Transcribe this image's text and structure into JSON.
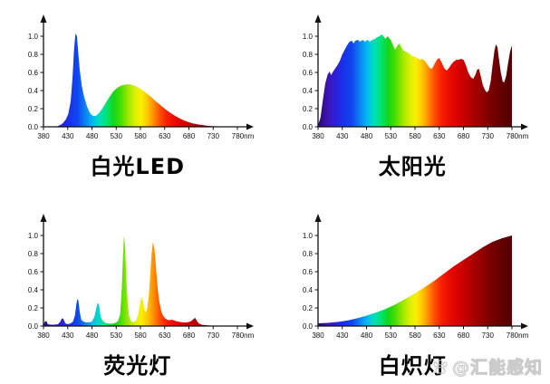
{
  "watermark": {
    "icon": "paw-icon",
    "handle": "@汇能感知"
  },
  "spectrum_gradient": [
    {
      "wl": 380,
      "color": "#2b0a6e"
    },
    {
      "wl": 400,
      "color": "#3d14b4"
    },
    {
      "wl": 415,
      "color": "#2f1fd8"
    },
    {
      "wl": 430,
      "color": "#1b2fe8"
    },
    {
      "wl": 450,
      "color": "#0e46f0"
    },
    {
      "wl": 465,
      "color": "#0f7cf2"
    },
    {
      "wl": 480,
      "color": "#00b7f2"
    },
    {
      "wl": 495,
      "color": "#00ddc0"
    },
    {
      "wl": 510,
      "color": "#00e470"
    },
    {
      "wl": 525,
      "color": "#14d61c"
    },
    {
      "wl": 540,
      "color": "#4cde00"
    },
    {
      "wl": 555,
      "color": "#9fe800"
    },
    {
      "wl": 570,
      "color": "#ddf000"
    },
    {
      "wl": 582,
      "color": "#fbef00"
    },
    {
      "wl": 595,
      "color": "#ffc400"
    },
    {
      "wl": 608,
      "color": "#ff8a00"
    },
    {
      "wl": 620,
      "color": "#ff4e00"
    },
    {
      "wl": 635,
      "color": "#f81e00"
    },
    {
      "wl": 655,
      "color": "#e60600"
    },
    {
      "wl": 680,
      "color": "#cb0000"
    },
    {
      "wl": 705,
      "color": "#a50000"
    },
    {
      "wl": 730,
      "color": "#800000"
    },
    {
      "wl": 755,
      "color": "#650000"
    },
    {
      "wl": 780,
      "color": "#520000"
    }
  ],
  "chart_data": [
    {
      "id": "white-led",
      "type": "area",
      "title": "白光LED",
      "xlabel": "",
      "ylabel": "",
      "x_unit": "nm",
      "xlim": [
        380,
        780
      ],
      "ylim": [
        0,
        1.05
      ],
      "x_tick_labels": [
        "380",
        "430",
        "480",
        "530",
        "580",
        "630",
        "680",
        "730",
        "780nm"
      ],
      "y_tick_labels": [
        "0.0",
        "0.2",
        "0.4",
        "0.6",
        "0.8",
        "1.0"
      ],
      "points": [
        [
          380,
          0
        ],
        [
          408,
          0.005
        ],
        [
          415,
          0.02
        ],
        [
          420,
          0.04
        ],
        [
          426,
          0.08
        ],
        [
          431,
          0.14
        ],
        [
          436,
          0.28
        ],
        [
          440,
          0.55
        ],
        [
          443,
          0.85
        ],
        [
          446,
          1.03
        ],
        [
          449,
          1.0
        ],
        [
          452,
          0.8
        ],
        [
          455,
          0.62
        ],
        [
          459,
          0.45
        ],
        [
          464,
          0.33
        ],
        [
          470,
          0.22
        ],
        [
          476,
          0.15
        ],
        [
          482,
          0.12
        ],
        [
          488,
          0.12
        ],
        [
          494,
          0.15
        ],
        [
          500,
          0.19
        ],
        [
          508,
          0.26
        ],
        [
          516,
          0.33
        ],
        [
          524,
          0.39
        ],
        [
          532,
          0.43
        ],
        [
          540,
          0.455
        ],
        [
          548,
          0.465
        ],
        [
          556,
          0.47
        ],
        [
          564,
          0.46
        ],
        [
          572,
          0.445
        ],
        [
          580,
          0.42
        ],
        [
          590,
          0.38
        ],
        [
          600,
          0.34
        ],
        [
          610,
          0.29
        ],
        [
          620,
          0.245
        ],
        [
          630,
          0.2
        ],
        [
          640,
          0.16
        ],
        [
          650,
          0.125
        ],
        [
          660,
          0.095
        ],
        [
          670,
          0.07
        ],
        [
          680,
          0.05
        ],
        [
          690,
          0.035
        ],
        [
          700,
          0.025
        ],
        [
          710,
          0.017
        ],
        [
          720,
          0.01
        ],
        [
          730,
          0.006
        ],
        [
          745,
          0.003
        ],
        [
          760,
          0.001
        ],
        [
          780,
          0
        ]
      ]
    },
    {
      "id": "sunlight",
      "type": "area",
      "title": "太阳光",
      "xlabel": "",
      "ylabel": "",
      "x_unit": "nm",
      "xlim": [
        380,
        780
      ],
      "ylim": [
        0,
        1.05
      ],
      "x_tick_labels": [
        "380",
        "430",
        "480",
        "530",
        "580",
        "630",
        "680",
        "730",
        "780nm"
      ],
      "y_tick_labels": [
        "0.0",
        "0.2",
        "0.4",
        "0.6",
        "0.8",
        "1.0"
      ],
      "points": [
        [
          380,
          0.02
        ],
        [
          385,
          0.1
        ],
        [
          390,
          0.3
        ],
        [
          395,
          0.48
        ],
        [
          400,
          0.58
        ],
        [
          404,
          0.61
        ],
        [
          407,
          0.57
        ],
        [
          410,
          0.6
        ],
        [
          415,
          0.64
        ],
        [
          420,
          0.68
        ],
        [
          425,
          0.73
        ],
        [
          430,
          0.8
        ],
        [
          435,
          0.85
        ],
        [
          440,
          0.9
        ],
        [
          445,
          0.94
        ],
        [
          450,
          0.95
        ],
        [
          453,
          0.92
        ],
        [
          457,
          0.95
        ],
        [
          462,
          0.96
        ],
        [
          467,
          0.94
        ],
        [
          472,
          0.96
        ],
        [
          477,
          0.94
        ],
        [
          482,
          0.96
        ],
        [
          487,
          0.94
        ],
        [
          492,
          0.96
        ],
        [
          497,
          0.97
        ],
        [
          502,
          0.99
        ],
        [
          507,
          1.0
        ],
        [
          511,
          1.02
        ],
        [
          515,
          1.0
        ],
        [
          519,
          0.97
        ],
        [
          523,
          1.0
        ],
        [
          527,
          0.98
        ],
        [
          531,
          0.95
        ],
        [
          535,
          0.9
        ],
        [
          539,
          0.85
        ],
        [
          543,
          0.89
        ],
        [
          547,
          0.92
        ],
        [
          551,
          0.89
        ],
        [
          555,
          0.85
        ],
        [
          560,
          0.83
        ],
        [
          565,
          0.82
        ],
        [
          570,
          0.8
        ],
        [
          575,
          0.78
        ],
        [
          580,
          0.77
        ],
        [
          585,
          0.76
        ],
        [
          590,
          0.74
        ],
        [
          595,
          0.75
        ],
        [
          600,
          0.73
        ],
        [
          605,
          0.69
        ],
        [
          610,
          0.65
        ],
        [
          615,
          0.64
        ],
        [
          620,
          0.69
        ],
        [
          625,
          0.74
        ],
        [
          630,
          0.76
        ],
        [
          635,
          0.71
        ],
        [
          640,
          0.65
        ],
        [
          645,
          0.62
        ],
        [
          650,
          0.65
        ],
        [
          655,
          0.69
        ],
        [
          660,
          0.72
        ],
        [
          665,
          0.74
        ],
        [
          670,
          0.74
        ],
        [
          675,
          0.75
        ],
        [
          680,
          0.74
        ],
        [
          685,
          0.68
        ],
        [
          690,
          0.6
        ],
        [
          695,
          0.55
        ],
        [
          700,
          0.53
        ],
        [
          705,
          0.58
        ],
        [
          708,
          0.63
        ],
        [
          712,
          0.64
        ],
        [
          716,
          0.55
        ],
        [
          720,
          0.46
        ],
        [
          724,
          0.41
        ],
        [
          728,
          0.38
        ],
        [
          732,
          0.4
        ],
        [
          736,
          0.5
        ],
        [
          740,
          0.68
        ],
        [
          744,
          0.84
        ],
        [
          747,
          0.91
        ],
        [
          750,
          0.88
        ],
        [
          753,
          0.75
        ],
        [
          757,
          0.6
        ],
        [
          761,
          0.5
        ],
        [
          764,
          0.49
        ],
        [
          768,
          0.56
        ],
        [
          772,
          0.7
        ],
        [
          776,
          0.83
        ],
        [
          780,
          0.9
        ]
      ]
    },
    {
      "id": "fluorescent",
      "type": "area",
      "title": "荧光灯",
      "xlabel": "",
      "ylabel": "",
      "x_unit": "nm",
      "xlim": [
        380,
        780
      ],
      "ylim": [
        0,
        1.05
      ],
      "x_tick_labels": [
        "380",
        "430",
        "480",
        "530",
        "580",
        "630",
        "680",
        "730",
        "780nm"
      ],
      "y_tick_labels": [
        "0.0",
        "0.2",
        "0.4",
        "0.6",
        "0.8",
        "1.0"
      ],
      "points": [
        [
          380,
          0.01
        ],
        [
          383,
          0.05
        ],
        [
          386,
          0.055
        ],
        [
          389,
          0.02
        ],
        [
          395,
          0.015
        ],
        [
          403,
          0.015
        ],
        [
          410,
          0.02
        ],
        [
          415,
          0.05
        ],
        [
          418,
          0.085
        ],
        [
          421,
          0.08
        ],
        [
          425,
          0.03
        ],
        [
          430,
          0.02
        ],
        [
          436,
          0.03
        ],
        [
          441,
          0.05
        ],
        [
          445,
          0.12
        ],
        [
          448,
          0.25
        ],
        [
          450,
          0.3
        ],
        [
          452,
          0.28
        ],
        [
          455,
          0.15
        ],
        [
          458,
          0.07
        ],
        [
          462,
          0.05
        ],
        [
          468,
          0.04
        ],
        [
          474,
          0.04
        ],
        [
          480,
          0.05
        ],
        [
          485,
          0.1
        ],
        [
          489,
          0.2
        ],
        [
          492,
          0.26
        ],
        [
          495,
          0.22
        ],
        [
          498,
          0.1
        ],
        [
          503,
          0.05
        ],
        [
          510,
          0.03
        ],
        [
          518,
          0.025
        ],
        [
          526,
          0.03
        ],
        [
          533,
          0.05
        ],
        [
          538,
          0.12
        ],
        [
          541,
          0.35
        ],
        [
          544,
          0.75
        ],
        [
          546,
          1.0
        ],
        [
          548,
          0.9
        ],
        [
          551,
          0.5
        ],
        [
          554,
          0.22
        ],
        [
          557,
          0.1
        ],
        [
          561,
          0.05
        ],
        [
          566,
          0.04
        ],
        [
          571,
          0.06
        ],
        [
          575,
          0.12
        ],
        [
          579,
          0.25
        ],
        [
          582,
          0.32
        ],
        [
          585,
          0.28
        ],
        [
          588,
          0.18
        ],
        [
          591,
          0.15
        ],
        [
          594,
          0.2
        ],
        [
          597,
          0.32
        ],
        [
          600,
          0.55
        ],
        [
          603,
          0.8
        ],
        [
          606,
          0.93
        ],
        [
          609,
          0.85
        ],
        [
          612,
          0.65
        ],
        [
          615,
          0.45
        ],
        [
          618,
          0.3
        ],
        [
          622,
          0.18
        ],
        [
          626,
          0.12
        ],
        [
          630,
          0.09
        ],
        [
          635,
          0.07
        ],
        [
          640,
          0.065
        ],
        [
          645,
          0.07
        ],
        [
          650,
          0.06
        ],
        [
          656,
          0.05
        ],
        [
          662,
          0.045
        ],
        [
          668,
          0.04
        ],
        [
          674,
          0.04
        ],
        [
          680,
          0.045
        ],
        [
          685,
          0.055
        ],
        [
          690,
          0.08
        ],
        [
          693,
          0.09
        ],
        [
          696,
          0.06
        ],
        [
          700,
          0.03
        ],
        [
          706,
          0.015
        ],
        [
          714,
          0.01
        ],
        [
          725,
          0.005
        ],
        [
          745,
          0.003
        ],
        [
          780,
          0
        ]
      ]
    },
    {
      "id": "incandescent",
      "type": "area",
      "title": "白炽灯",
      "xlabel": "",
      "ylabel": "",
      "x_unit": "nm",
      "xlim": [
        380,
        780
      ],
      "ylim": [
        0,
        1.05
      ],
      "x_tick_labels": [
        "380",
        "430",
        "480",
        "530",
        "580",
        "630",
        "680",
        "730",
        "780nm"
      ],
      "y_tick_labels": [
        "0.0",
        "0.2",
        "0.4",
        "0.6",
        "0.8",
        "1.0"
      ],
      "points": [
        [
          380,
          0.03
        ],
        [
          400,
          0.035
        ],
        [
          420,
          0.045
        ],
        [
          440,
          0.06
        ],
        [
          460,
          0.085
        ],
        [
          480,
          0.115
        ],
        [
          500,
          0.15
        ],
        [
          520,
          0.19
        ],
        [
          540,
          0.24
        ],
        [
          560,
          0.3
        ],
        [
          580,
          0.36
        ],
        [
          600,
          0.43
        ],
        [
          620,
          0.5
        ],
        [
          640,
          0.58
        ],
        [
          660,
          0.66
        ],
        [
          680,
          0.73
        ],
        [
          700,
          0.8
        ],
        [
          720,
          0.87
        ],
        [
          740,
          0.93
        ],
        [
          760,
          0.97
        ],
        [
          780,
          1.0
        ]
      ]
    }
  ]
}
